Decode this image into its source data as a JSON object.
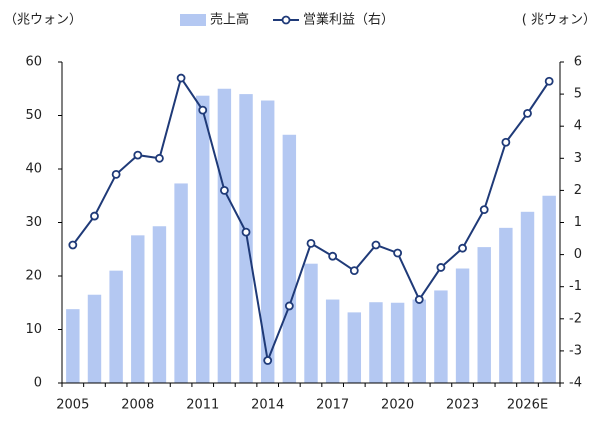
{
  "chart_data": {
    "type": "bar_line",
    "y_label": "（兆ウォン）",
    "y2_label": "( 兆ウォン）",
    "categories": [
      "2005",
      null,
      null,
      "2008",
      null,
      null,
      "2011",
      null,
      null,
      "2014",
      null,
      null,
      "2017",
      null,
      null,
      "2020",
      null,
      null,
      "2023",
      null,
      null,
      "2026E",
      null
    ],
    "series": [
      {
        "name": "売上高",
        "color": "#b4c8f2",
        "kind": "bar",
        "axis": "y",
        "values": [
          13.8,
          16.5,
          21,
          27.6,
          29.3,
          37.3,
          53.7,
          55,
          54,
          52.8,
          46.4,
          22.3,
          15.6,
          13.2,
          15.1,
          15,
          15.6,
          17.3,
          21.4,
          25.4,
          29,
          32,
          35
        ]
      },
      {
        "name": "営業利益（右）",
        "color": "#1f3a78",
        "kind": "line",
        "axis": "y2",
        "values": [
          0.3,
          1.2,
          2.5,
          3.1,
          3.0,
          5.5,
          4.5,
          2.0,
          0.7,
          -3.3,
          -1.6,
          0.35,
          -0.05,
          -0.5,
          0.3,
          0.05,
          -1.4,
          -0.4,
          0.2,
          1.4,
          3.5,
          4.4,
          5.4
        ]
      }
    ],
    "ylim": [
      0,
      60
    ],
    "yticks": [
      0,
      10,
      20,
      30,
      40,
      50,
      60
    ],
    "y2lim": [
      -4,
      6
    ],
    "y2ticks": [
      -4,
      -3,
      -2,
      -1,
      0,
      1,
      2,
      3,
      4,
      5,
      6
    ],
    "legend": "top"
  }
}
